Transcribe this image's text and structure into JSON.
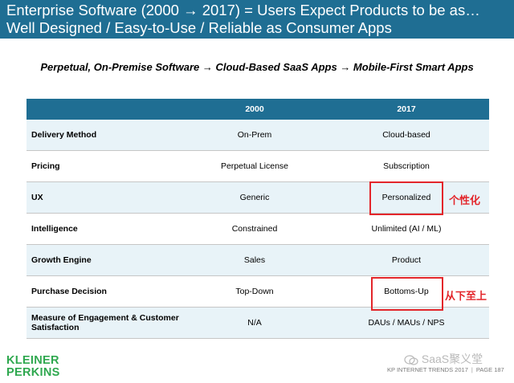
{
  "title": {
    "line1": "Enterprise Software (2000 → 2017) = Users Expect Products to be as…",
    "line2": "Well Designed / Easy-to-Use / Reliable as Consumer Apps"
  },
  "subtitle": "Perpetual, On-Premise Software → Cloud-Based SaaS Apps → Mobile-First Smart Apps",
  "table": {
    "headers": [
      "",
      "2000",
      "2017"
    ],
    "rows": [
      {
        "label": "Delivery Method",
        "v2000": "On-Prem",
        "v2017": "Cloud-based"
      },
      {
        "label": "Pricing",
        "v2000": "Perpetual License",
        "v2017": "Subscription"
      },
      {
        "label": "UX",
        "v2000": "Generic",
        "v2017": "Personalized"
      },
      {
        "label": "Intelligence",
        "v2000": "Constrained",
        "v2017": "Unlimited (AI / ML)"
      },
      {
        "label": "Growth Engine",
        "v2000": "Sales",
        "v2017": "Product"
      },
      {
        "label": "Purchase Decision",
        "v2000": "Top-Down",
        "v2017": "Bottoms-Up"
      },
      {
        "label": "Measure of Engagement & Customer Satisfaction",
        "v2000": "N/A",
        "v2017": "DAUs / MAUs / NPS"
      }
    ]
  },
  "annotations": {
    "ux_note": "个性化",
    "purchase_note": "从下至上"
  },
  "logo": {
    "line1": "KLEINER",
    "line2": "PERKINS"
  },
  "watermark": "SaaS聚义堂",
  "footer": {
    "source": "KP INTERNET TRENDS 2017",
    "separator": "|",
    "page": "PAGE 187"
  },
  "colors": {
    "header_bg": "#1f6e93",
    "row_alt_bg": "#e8f3f8",
    "highlight_red": "#e3262b",
    "logo_green": "#2fa84f"
  }
}
